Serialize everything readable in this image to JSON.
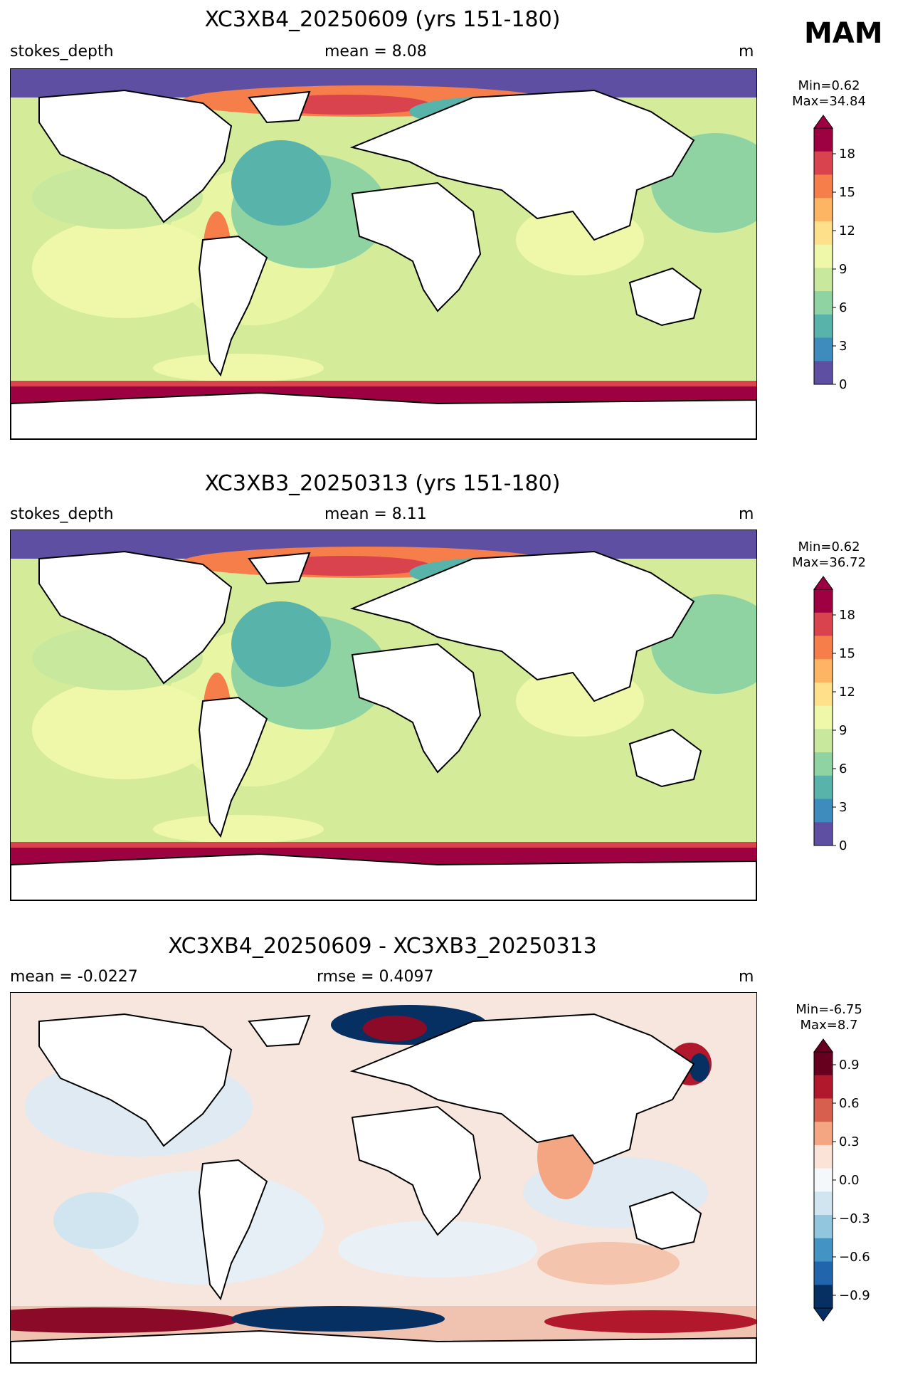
{
  "season": "MAM",
  "panels": [
    {
      "title": "XC3XB4_20250609 (yrs 151-180)",
      "left_label": "stokes_depth",
      "center_label": "mean = 8.08",
      "right_label": "m",
      "min_label": "Min=0.62",
      "max_label": "Max=34.84",
      "colorbar": {
        "ticks": [
          "0",
          "3",
          "6",
          "9",
          "12",
          "15",
          "18"
        ],
        "colors": [
          "#5e4fa2",
          "#3e8bbd",
          "#58b4aa",
          "#8fd3a3",
          "#c8e99d",
          "#eef8a8",
          "#fee08b",
          "#fdb563",
          "#f67e4b",
          "#d8434e",
          "#9e0142"
        ]
      }
    },
    {
      "title": "XC3XB3_20250313 (yrs 151-180)",
      "left_label": "stokes_depth",
      "center_label": "mean = 8.11",
      "right_label": "m",
      "min_label": "Min=0.62",
      "max_label": "Max=36.72",
      "colorbar": {
        "ticks": [
          "0",
          "3",
          "6",
          "9",
          "12",
          "15",
          "18"
        ],
        "colors": [
          "#5e4fa2",
          "#3e8bbd",
          "#58b4aa",
          "#8fd3a3",
          "#c8e99d",
          "#eef8a8",
          "#fee08b",
          "#fdb563",
          "#f67e4b",
          "#d8434e",
          "#9e0142"
        ]
      }
    },
    {
      "title": "XC3XB4_20250609 - XC3XB3_20250313",
      "left_label": "mean = -0.0227",
      "center_label": "rmse = 0.4097",
      "right_label": "m",
      "min_label": "Min=-6.75",
      "max_label": "Max=8.7",
      "colorbar": {
        "ticks": [
          "0.9",
          "0.6",
          "0.3",
          "0.0",
          "−0.3",
          "−0.6",
          "−0.9"
        ],
        "colors": [
          "#053061",
          "#2166ac",
          "#4393c3",
          "#92c5de",
          "#d1e5f0",
          "#f4f8fb",
          "#fbe3d7",
          "#f4a582",
          "#d6604d",
          "#b2182b",
          "#67001f"
        ]
      }
    }
  ]
}
